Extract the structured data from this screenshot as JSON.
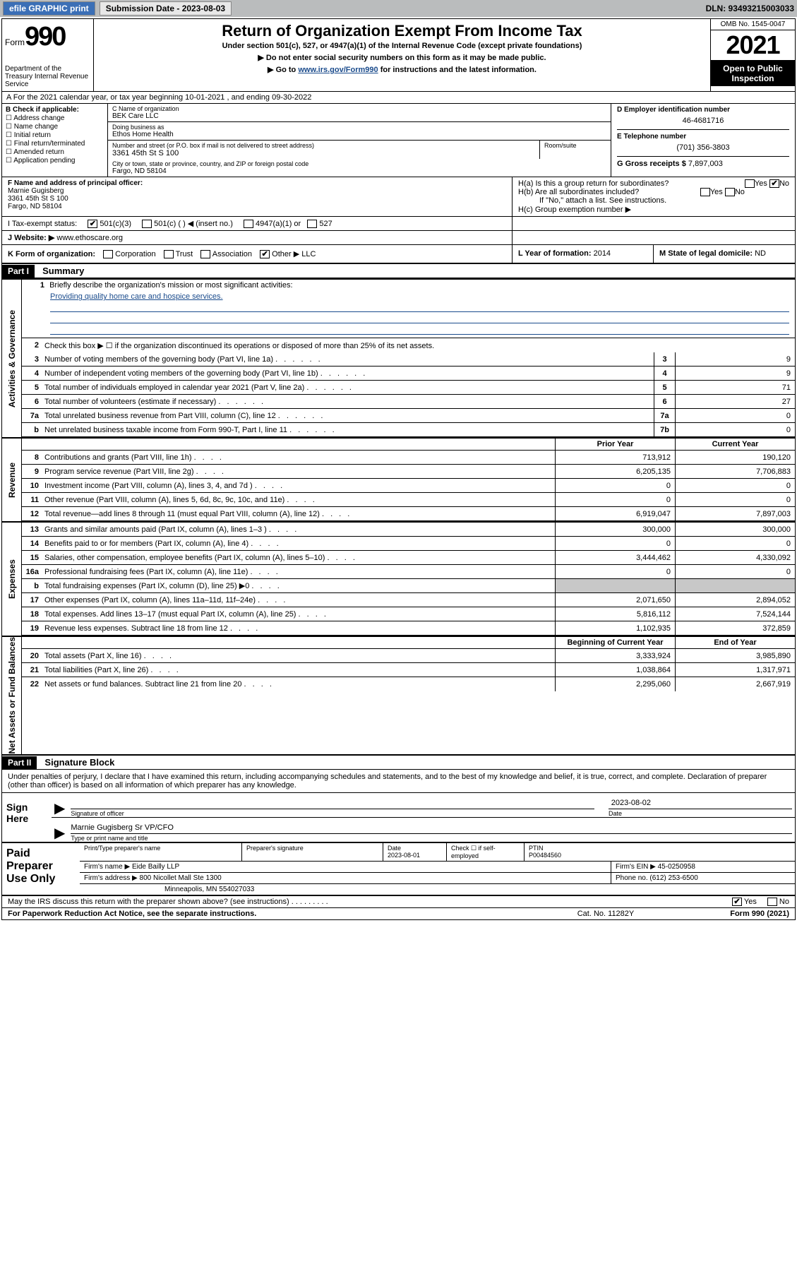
{
  "toolbar": {
    "efile": "efile GRAPHIC print",
    "submission": "Submission Date - 2023-08-03",
    "dln": "DLN: 93493215003033"
  },
  "header": {
    "form_word": "Form",
    "form_number": "990",
    "dept": "Department of the Treasury\nInternal Revenue Service",
    "title": "Return of Organization Exempt From Income Tax",
    "subtitle": "Under section 501(c), 527, or 4947(a)(1) of the Internal Revenue Code (except private foundations)",
    "note1": "▶ Do not enter social security numbers on this form as it may be made public.",
    "note2_pre": "▶ Go to ",
    "note2_link": "www.irs.gov/Form990",
    "note2_post": " for instructions and the latest information.",
    "omb": "OMB No. 1545-0047",
    "year": "2021",
    "open": "Open to Public Inspection"
  },
  "row_a": "A For the 2021 calendar year, or tax year beginning 10-01-2021   , and ending 09-30-2022",
  "col_b": {
    "label": "B Check if applicable:",
    "items": [
      "Address change",
      "Name change",
      "Initial return",
      "Final return/terminated",
      "Amended return",
      "Application pending"
    ]
  },
  "col_c": {
    "name_lbl": "C Name of organization",
    "name": "BEK Care LLC",
    "dba_lbl": "Doing business as",
    "dba": "Ethos Home Health",
    "addr_lbl": "Number and street (or P.O. box if mail is not delivered to street address)",
    "addr": "3361 45th St S 100",
    "room_lbl": "Room/suite",
    "city_lbl": "City or town, state or province, country, and ZIP or foreign postal code",
    "city": "Fargo, ND  58104"
  },
  "col_d": {
    "d_lbl": "D Employer identification number",
    "ein": "46-4681716",
    "e_lbl": "E Telephone number",
    "phone": "(701) 356-3803",
    "g_lbl": "G Gross receipts $",
    "gross": "7,897,003"
  },
  "block_f": {
    "f_lbl": "F Name and address of principal officer:",
    "name": "Marnie Gugisberg",
    "addr1": "3361 45th St S 100",
    "addr2": "Fargo, ND  58104"
  },
  "block_h": {
    "ha": "H(a)  Is this a group return for subordinates?",
    "hb": "H(b)  Are all subordinates included?",
    "hb_note": "If \"No,\" attach a list. See instructions.",
    "hc": "H(c)  Group exemption number ▶"
  },
  "row_i": {
    "lbl": "I   Tax-exempt status:",
    "opts": [
      "501(c)(3)",
      "501(c) (   ) ◀ (insert no.)",
      "4947(a)(1) or",
      "527"
    ]
  },
  "row_j": {
    "lbl": "J   Website: ▶",
    "val": "www.ethoscare.org"
  },
  "row_k": {
    "k_lbl": "K Form of organization:",
    "opts": [
      "Corporation",
      "Trust",
      "Association",
      "Other ▶"
    ],
    "other_val": "LLC",
    "l_lbl": "L Year of formation:",
    "l_val": "2014",
    "m_lbl": "M State of legal domicile:",
    "m_val": "ND"
  },
  "part1": {
    "hdr": "Part I",
    "title": "Summary"
  },
  "gov": {
    "tab": "Activities & Governance",
    "q1": "Briefly describe the organization's mission or most significant activities:",
    "mission": "Providing quality home care and hospice services.",
    "q2": "Check this box ▶ ☐  if the organization discontinued its operations or disposed of more than 25% of its net assets.",
    "lines": [
      {
        "n": "3",
        "t": "Number of voting members of the governing body (Part VI, line 1a)",
        "box": "3",
        "v": "9"
      },
      {
        "n": "4",
        "t": "Number of independent voting members of the governing body (Part VI, line 1b)",
        "box": "4",
        "v": "9"
      },
      {
        "n": "5",
        "t": "Total number of individuals employed in calendar year 2021 (Part V, line 2a)",
        "box": "5",
        "v": "71"
      },
      {
        "n": "6",
        "t": "Total number of volunteers (estimate if necessary)",
        "box": "6",
        "v": "27"
      },
      {
        "n": "7a",
        "t": "Total unrelated business revenue from Part VIII, column (C), line 12",
        "box": "7a",
        "v": "0"
      },
      {
        "n": "b",
        "t": "Net unrelated business taxable income from Form 990-T, Part I, line 11",
        "box": "7b",
        "v": "0"
      }
    ]
  },
  "rev": {
    "tab": "Revenue",
    "hdr_prior": "Prior Year",
    "hdr_curr": "Current Year",
    "lines": [
      {
        "n": "8",
        "t": "Contributions and grants (Part VIII, line 1h)",
        "p": "713,912",
        "c": "190,120"
      },
      {
        "n": "9",
        "t": "Program service revenue (Part VIII, line 2g)",
        "p": "6,205,135",
        "c": "7,706,883"
      },
      {
        "n": "10",
        "t": "Investment income (Part VIII, column (A), lines 3, 4, and 7d )",
        "p": "0",
        "c": "0"
      },
      {
        "n": "11",
        "t": "Other revenue (Part VIII, column (A), lines 5, 6d, 8c, 9c, 10c, and 11e)",
        "p": "0",
        "c": "0"
      },
      {
        "n": "12",
        "t": "Total revenue—add lines 8 through 11 (must equal Part VIII, column (A), line 12)",
        "p": "6,919,047",
        "c": "7,897,003"
      }
    ]
  },
  "exp": {
    "tab": "Expenses",
    "lines": [
      {
        "n": "13",
        "t": "Grants and similar amounts paid (Part IX, column (A), lines 1–3 )",
        "p": "300,000",
        "c": "300,000"
      },
      {
        "n": "14",
        "t": "Benefits paid to or for members (Part IX, column (A), line 4)",
        "p": "0",
        "c": "0"
      },
      {
        "n": "15",
        "t": "Salaries, other compensation, employee benefits (Part IX, column (A), lines 5–10)",
        "p": "3,444,462",
        "c": "4,330,092"
      },
      {
        "n": "16a",
        "t": "Professional fundraising fees (Part IX, column (A), line 11e)",
        "p": "0",
        "c": "0"
      },
      {
        "n": "b",
        "t": "Total fundraising expenses (Part IX, column (D), line 25) ▶0",
        "p": "gray",
        "c": "gray"
      },
      {
        "n": "17",
        "t": "Other expenses (Part IX, column (A), lines 11a–11d, 11f–24e)",
        "p": "2,071,650",
        "c": "2,894,052"
      },
      {
        "n": "18",
        "t": "Total expenses. Add lines 13–17 (must equal Part IX, column (A), line 25)",
        "p": "5,816,112",
        "c": "7,524,144"
      },
      {
        "n": "19",
        "t": "Revenue less expenses. Subtract line 18 from line 12",
        "p": "1,102,935",
        "c": "372,859"
      }
    ]
  },
  "net": {
    "tab": "Net Assets or Fund Balances",
    "hdr_beg": "Beginning of Current Year",
    "hdr_end": "End of Year",
    "lines": [
      {
        "n": "20",
        "t": "Total assets (Part X, line 16)",
        "p": "3,333,924",
        "c": "3,985,890"
      },
      {
        "n": "21",
        "t": "Total liabilities (Part X, line 26)",
        "p": "1,038,864",
        "c": "1,317,971"
      },
      {
        "n": "22",
        "t": "Net assets or fund balances. Subtract line 21 from line 20",
        "p": "2,295,060",
        "c": "2,667,919"
      }
    ]
  },
  "part2": {
    "hdr": "Part II",
    "title": "Signature Block"
  },
  "sig": {
    "intro": "Under penalties of perjury, I declare that I have examined this return, including accompanying schedules and statements, and to the best of my knowledge and belief, it is true, correct, and complete. Declaration of preparer (other than officer) is based on all information of which preparer has any knowledge.",
    "sign_here": "Sign Here",
    "date": "2023-08-02",
    "sig_lbl": "Signature of officer",
    "date_lbl": "Date",
    "name": "Marnie Gugisberg  Sr VP/CFO",
    "name_lbl": "Type or print name and title"
  },
  "prep": {
    "label": "Paid Preparer Use Only",
    "h1": "Print/Type preparer's name",
    "h2": "Preparer's signature",
    "h3": "Date",
    "h3v": "2023-08-01",
    "h4": "Check ☐ if self-employed",
    "h5": "PTIN",
    "h5v": "P00484560",
    "firm_lbl": "Firm's name    ▶",
    "firm": "Eide Bailly LLP",
    "ein_lbl": "Firm's EIN ▶",
    "ein": "45-0250958",
    "addr_lbl": "Firm's address ▶",
    "addr1": "800 Nicollet Mall Ste 1300",
    "addr2": "Minneapolis, MN  554027033",
    "phone_lbl": "Phone no.",
    "phone": "(612) 253-6500"
  },
  "footer": {
    "discuss": "May the IRS discuss this return with the preparer shown above? (see instructions)",
    "pra": "For Paperwork Reduction Act Notice, see the separate instructions.",
    "cat": "Cat. No. 11282Y",
    "form": "Form 990 (2021)"
  }
}
